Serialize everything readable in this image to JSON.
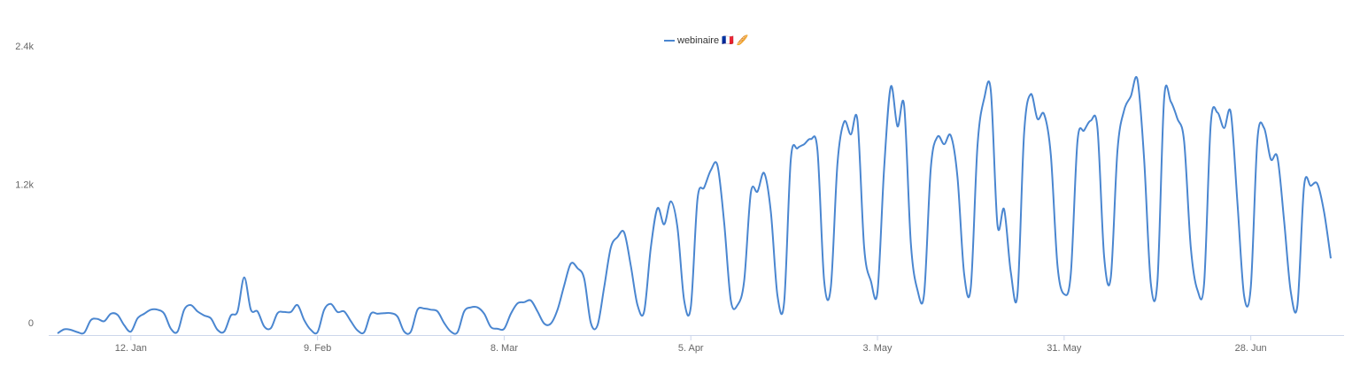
{
  "chart_data": {
    "type": "line",
    "x": [
      0,
      1,
      2,
      3,
      4,
      5,
      6,
      7,
      8,
      9,
      10,
      11,
      12,
      13,
      14,
      15,
      16,
      17,
      18,
      19,
      20,
      21,
      22,
      23,
      24,
      25,
      26,
      27,
      28,
      29,
      30,
      31,
      32,
      33,
      34,
      35,
      36,
      37,
      38,
      39,
      40,
      41,
      42,
      43,
      44,
      45,
      46,
      47,
      48,
      49,
      50,
      51,
      52,
      53,
      54,
      55,
      56,
      57,
      58,
      59,
      60,
      61,
      62,
      63,
      64,
      65,
      66,
      67,
      68,
      69,
      70,
      71,
      72,
      73,
      74,
      75,
      76,
      77,
      78,
      79,
      80,
      81,
      82,
      83,
      84,
      85,
      86,
      87,
      88,
      89,
      90,
      91,
      92,
      93,
      94,
      95,
      96,
      97,
      98,
      99,
      100,
      101,
      102,
      103,
      104,
      105,
      106,
      107,
      108,
      109,
      110,
      111,
      112,
      113,
      114,
      115,
      116,
      117,
      118,
      119,
      120,
      121,
      122,
      123,
      124,
      125,
      126,
      127,
      128,
      129,
      130,
      131,
      132,
      133,
      134,
      135,
      136,
      137,
      138,
      139,
      140,
      141,
      142,
      143,
      144,
      145,
      146,
      147,
      148,
      149,
      150,
      151,
      152,
      153,
      154,
      155,
      156,
      157,
      158,
      159,
      160,
      161,
      162,
      163,
      164,
      165,
      166,
      167,
      168,
      169,
      170,
      171,
      172,
      173,
      174,
      175,
      176,
      177,
      178,
      179,
      180,
      181,
      182,
      183,
      184,
      185,
      186,
      187,
      188,
      189,
      190,
      191
    ],
    "series": [
      {
        "name": "webinaire 🇫🇷 🥖",
        "color": "#4a86d0",
        "values": [
          15,
          50,
          45,
          25,
          20,
          130,
          140,
          120,
          185,
          175,
          85,
          30,
          145,
          185,
          220,
          220,
          185,
          55,
          30,
          220,
          260,
          205,
          170,
          145,
          45,
          30,
          170,
          205,
          500,
          220,
          205,
          75,
          60,
          190,
          200,
          200,
          260,
          130,
          45,
          25,
          220,
          270,
          200,
          205,
          120,
          40,
          25,
          185,
          185,
          190,
          190,
          160,
          30,
          30,
          220,
          230,
          220,
          205,
          105,
          30,
          25,
          205,
          240,
          240,
          185,
          70,
          55,
          55,
          185,
          275,
          285,
          300,
          205,
          100,
          100,
          220,
          430,
          620,
          580,
          490,
          105,
          85,
          415,
          760,
          850,
          890,
          600,
          260,
          205,
          760,
          1100,
          960,
          1160,
          930,
          300,
          245,
          1180,
          1280,
          1430,
          1470,
          975,
          300,
          260,
          470,
          1235,
          1245,
          1405,
          1070,
          340,
          285,
          1525,
          1620,
          1655,
          1700,
          1600,
          470,
          415,
          1490,
          1850,
          1740,
          1860,
          760,
          470,
          375,
          1450,
          2155,
          1810,
          1990,
          800,
          390,
          360,
          1450,
          1720,
          1655,
          1730,
          1370,
          530,
          415,
          1640,
          2050,
          2120,
          955,
          1090,
          545,
          355,
          1755,
          2090,
          1875,
          1915,
          1565,
          605,
          355,
          530,
          1680,
          1775,
          1860,
          1795,
          680,
          500,
          1600,
          1950,
          2070,
          2215,
          1525,
          450,
          470,
          2050,
          2025,
          1875,
          1680,
          760,
          390,
          450,
          1835,
          1930,
          1795,
          1930,
          1145,
          340,
          415,
          1700,
          1795,
          1525,
          1540,
          990,
          375,
          260,
          1295,
          1295,
          1310,
          1065,
          665
        ]
      }
    ],
    "xlim": [
      0,
      191
    ],
    "xticks": [
      {
        "value": 11,
        "label": "12. Jan"
      },
      {
        "value": 39,
        "label": "9. Feb"
      },
      {
        "value": 67,
        "label": "8. Mar"
      },
      {
        "value": 95,
        "label": "5. Apr"
      },
      {
        "value": 123,
        "label": "3. May"
      },
      {
        "value": 151,
        "label": "31. May"
      },
      {
        "value": 179,
        "label": "28. Jun"
      }
    ],
    "ylim": [
      0,
      2400
    ],
    "yticks": [
      0,
      {
        "value": 1200,
        "label": "1.2k"
      },
      {
        "value": 2400,
        "label": "2.4k"
      }
    ],
    "grid": false,
    "legend": "top"
  }
}
